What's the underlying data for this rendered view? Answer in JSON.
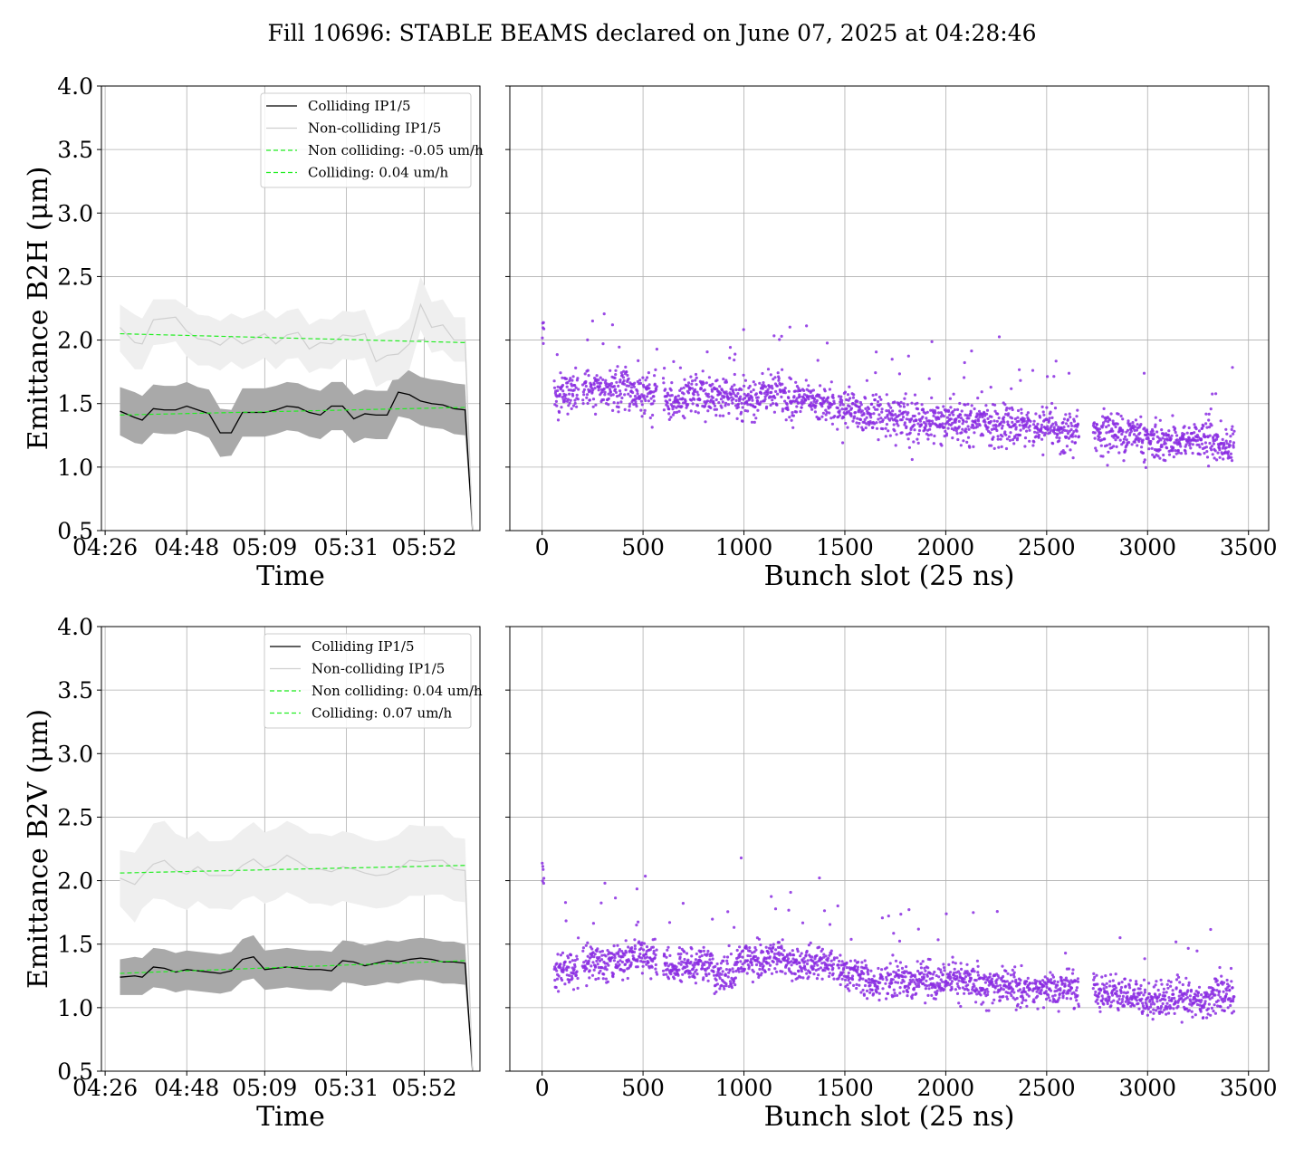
{
  "figure": {
    "title": "Fill 10696: STABLE BEAMS declared on June 07, 2025 at 04:28:46"
  },
  "colors": {
    "colliding_line": "#000000",
    "colliding_band": "#a9a9a9",
    "noncolliding_line": "#cfcfcf",
    "noncolliding_band": "#efefef",
    "fit": "#22ee22",
    "scatter": "#8a2be2",
    "grid": "#b0b0b0"
  },
  "chart_data": [
    {
      "type": "line",
      "panel": "top-left",
      "xlabel": "Time",
      "ylabel": "Emittance B2H (μm)",
      "ylim": [
        0.5,
        4.0
      ],
      "yticks": [
        "0.5",
        "1.0",
        "1.5",
        "2.0",
        "2.5",
        "3.0",
        "3.5",
        "4.0"
      ],
      "xlim": [
        -1,
        101
      ],
      "xticks": [
        {
          "x": 0,
          "label": "04:26"
        },
        {
          "x": 22,
          "label": "04:48"
        },
        {
          "x": 43,
          "label": "05:09"
        },
        {
          "x": 65,
          "label": "05:31"
        },
        {
          "x": 86,
          "label": "05:52"
        }
      ],
      "grid": true,
      "legend_position": "top-right",
      "legend": [
        "Colliding IP1/5",
        "Non-colliding IP1/5",
        "Non colliding: -0.05 um/h",
        "Colliding: 0.04 um/h"
      ],
      "x": [
        4,
        8,
        10,
        13,
        16,
        19,
        22,
        25,
        28,
        31,
        34,
        37,
        40,
        43,
        46,
        49,
        52,
        55,
        58,
        61,
        64,
        67,
        70,
        73,
        76,
        79,
        82,
        85,
        88,
        91,
        94,
        97
      ],
      "series": [
        {
          "name": "Colliding IP1/5",
          "role": "line",
          "values": [
            1.44,
            1.39,
            1.37,
            1.46,
            1.45,
            1.45,
            1.48,
            1.45,
            1.42,
            1.27,
            1.27,
            1.43,
            1.43,
            1.43,
            1.45,
            1.48,
            1.47,
            1.43,
            1.41,
            1.48,
            1.48,
            1.38,
            1.42,
            1.41,
            1.41,
            1.59,
            1.57,
            1.52,
            1.5,
            1.49,
            1.46,
            1.45
          ],
          "lower": [
            1.25,
            1.19,
            1.18,
            1.27,
            1.26,
            1.26,
            1.29,
            1.27,
            1.23,
            1.08,
            1.09,
            1.24,
            1.24,
            1.24,
            1.26,
            1.29,
            1.28,
            1.24,
            1.22,
            1.29,
            1.29,
            1.19,
            1.23,
            1.22,
            1.22,
            1.4,
            1.38,
            1.33,
            1.31,
            1.3,
            1.26,
            1.25
          ],
          "upper": [
            1.63,
            1.59,
            1.56,
            1.65,
            1.64,
            1.64,
            1.67,
            1.63,
            1.61,
            1.46,
            1.45,
            1.62,
            1.62,
            1.62,
            1.64,
            1.67,
            1.66,
            1.62,
            1.6,
            1.67,
            1.67,
            1.57,
            1.61,
            1.6,
            1.6,
            1.78,
            1.76,
            1.71,
            1.69,
            1.68,
            1.66,
            1.65
          ],
          "drop_to": 0.5
        },
        {
          "name": "Non-colliding IP1/5",
          "role": "line",
          "values": [
            2.1,
            1.98,
            1.97,
            2.16,
            2.17,
            2.18,
            2.07,
            2.01,
            2.0,
            1.96,
            2.03,
            1.97,
            2.01,
            2.05,
            1.97,
            2.04,
            2.06,
            1.93,
            1.98,
            1.97,
            2.04,
            2.03,
            2.05,
            1.83,
            1.88,
            1.89,
            1.97,
            2.28,
            2.1,
            2.12,
            2.0,
            2.0
          ],
          "lower": [
            1.91,
            1.77,
            1.77,
            1.96,
            1.97,
            1.99,
            1.87,
            1.8,
            1.8,
            1.76,
            1.83,
            1.77,
            1.81,
            1.86,
            1.77,
            1.85,
            1.86,
            1.74,
            1.78,
            1.77,
            1.85,
            1.84,
            1.86,
            1.63,
            1.68,
            1.69,
            1.77,
            2.08,
            1.9,
            1.92,
            1.83,
            1.83
          ],
          "upper": [
            2.28,
            2.2,
            2.17,
            2.32,
            2.32,
            2.32,
            2.26,
            2.2,
            2.19,
            2.15,
            2.21,
            2.17,
            2.2,
            2.24,
            2.17,
            2.23,
            2.25,
            2.12,
            2.17,
            2.16,
            2.23,
            2.22,
            2.24,
            2.03,
            2.07,
            2.09,
            2.17,
            2.5,
            2.3,
            2.32,
            2.18,
            2.18
          ],
          "drop_to": 0.5
        },
        {
          "name": "Non colliding: -0.05 um/h",
          "role": "fit",
          "x": [
            4,
            97
          ],
          "values": [
            2.05,
            1.98
          ]
        },
        {
          "name": "Colliding: 0.04 um/h",
          "role": "fit",
          "x": [
            4,
            97
          ],
          "values": [
            1.41,
            1.47
          ]
        }
      ]
    },
    {
      "type": "scatter",
      "panel": "top-right",
      "xlabel": "Bunch slot (25 ns)",
      "ylim": [
        0.5,
        4.0
      ],
      "yticks": [
        "0.5",
        "1.0",
        "1.5",
        "2.0",
        "2.5",
        "3.0",
        "3.5",
        "4.0"
      ],
      "xlim": [
        -160,
        3600
      ],
      "xticks": [
        "0",
        "500",
        "1000",
        "1500",
        "2000",
        "2500",
        "3000",
        "3500"
      ],
      "grid": true,
      "trains": [
        {
          "start": 0,
          "end": 10,
          "mean": 2.1
        },
        {
          "start": 60,
          "end": 180,
          "mean": 1.58
        },
        {
          "start": 200,
          "end": 330,
          "mean": 1.6
        },
        {
          "start": 330,
          "end": 440,
          "mean": 1.64
        },
        {
          "start": 440,
          "end": 570,
          "mean": 1.58
        },
        {
          "start": 600,
          "end": 720,
          "mean": 1.52
        },
        {
          "start": 720,
          "end": 850,
          "mean": 1.56
        },
        {
          "start": 850,
          "end": 960,
          "mean": 1.55
        },
        {
          "start": 960,
          "end": 1080,
          "mean": 1.52
        },
        {
          "start": 1080,
          "end": 1200,
          "mean": 1.6
        },
        {
          "start": 1200,
          "end": 1320,
          "mean": 1.52
        },
        {
          "start": 1320,
          "end": 1450,
          "mean": 1.5
        },
        {
          "start": 1460,
          "end": 1580,
          "mean": 1.45
        },
        {
          "start": 1580,
          "end": 1690,
          "mean": 1.4
        },
        {
          "start": 1700,
          "end": 1830,
          "mean": 1.38
        },
        {
          "start": 1830,
          "end": 1950,
          "mean": 1.36
        },
        {
          "start": 1950,
          "end": 2070,
          "mean": 1.36
        },
        {
          "start": 2070,
          "end": 2190,
          "mean": 1.36
        },
        {
          "start": 2190,
          "end": 2310,
          "mean": 1.34
        },
        {
          "start": 2310,
          "end": 2420,
          "mean": 1.31
        },
        {
          "start": 2430,
          "end": 2550,
          "mean": 1.3
        },
        {
          "start": 2550,
          "end": 2660,
          "mean": 1.28
        },
        {
          "start": 2730,
          "end": 2850,
          "mean": 1.28
        },
        {
          "start": 2850,
          "end": 2970,
          "mean": 1.26
        },
        {
          "start": 2970,
          "end": 3090,
          "mean": 1.2
        },
        {
          "start": 3090,
          "end": 3200,
          "mean": 1.2
        },
        {
          "start": 3200,
          "end": 3320,
          "mean": 1.22
        },
        {
          "start": 3320,
          "end": 3430,
          "mean": 1.18
        }
      ],
      "spread": 0.08
    },
    {
      "type": "line",
      "panel": "bottom-left",
      "xlabel": "Time",
      "ylabel": "Emittance B2V (μm)",
      "ylim": [
        0.5,
        4.0
      ],
      "yticks": [
        "0.5",
        "1.0",
        "1.5",
        "2.0",
        "2.5",
        "3.0",
        "3.5",
        "4.0"
      ],
      "xlim": [
        -1,
        101
      ],
      "xticks": [
        {
          "x": 0,
          "label": "04:26"
        },
        {
          "x": 22,
          "label": "04:48"
        },
        {
          "x": 43,
          "label": "05:09"
        },
        {
          "x": 65,
          "label": "05:31"
        },
        {
          "x": 86,
          "label": "05:52"
        }
      ],
      "grid": true,
      "legend_position": "top-right",
      "legend": [
        "Colliding IP1/5",
        "Non-colliding IP1/5",
        "Non colliding: 0.04 um/h",
        "Colliding: 0.07 um/h"
      ],
      "x": [
        4,
        8,
        10,
        13,
        16,
        19,
        22,
        25,
        28,
        31,
        34,
        37,
        40,
        43,
        46,
        49,
        52,
        55,
        58,
        61,
        64,
        67,
        70,
        73,
        76,
        79,
        82,
        85,
        88,
        91,
        94,
        97
      ],
      "series": [
        {
          "name": "Colliding IP1/5",
          "role": "line",
          "values": [
            1.24,
            1.25,
            1.24,
            1.32,
            1.31,
            1.28,
            1.3,
            1.29,
            1.28,
            1.27,
            1.29,
            1.38,
            1.4,
            1.3,
            1.31,
            1.32,
            1.31,
            1.3,
            1.3,
            1.29,
            1.37,
            1.36,
            1.33,
            1.35,
            1.37,
            1.36,
            1.38,
            1.39,
            1.38,
            1.36,
            1.36,
            1.35
          ],
          "lower": [
            1.1,
            1.1,
            1.1,
            1.16,
            1.15,
            1.12,
            1.14,
            1.13,
            1.12,
            1.11,
            1.13,
            1.21,
            1.23,
            1.14,
            1.15,
            1.16,
            1.15,
            1.14,
            1.14,
            1.13,
            1.2,
            1.19,
            1.17,
            1.18,
            1.2,
            1.19,
            1.21,
            1.22,
            1.21,
            1.19,
            1.19,
            1.18
          ],
          "upper": [
            1.38,
            1.4,
            1.39,
            1.47,
            1.46,
            1.43,
            1.45,
            1.44,
            1.43,
            1.42,
            1.44,
            1.54,
            1.57,
            1.45,
            1.46,
            1.47,
            1.46,
            1.45,
            1.45,
            1.44,
            1.53,
            1.52,
            1.49,
            1.51,
            1.53,
            1.52,
            1.54,
            1.55,
            1.54,
            1.52,
            1.52,
            1.5
          ],
          "drop_to": 0.5
        },
        {
          "name": "Non-colliding IP1/5",
          "role": "line",
          "values": [
            2.02,
            1.97,
            2.04,
            2.13,
            2.16,
            2.08,
            2.05,
            2.11,
            2.04,
            2.04,
            2.04,
            2.12,
            2.17,
            2.1,
            2.13,
            2.2,
            2.15,
            2.09,
            2.09,
            2.07,
            2.11,
            2.09,
            2.06,
            2.04,
            2.05,
            2.09,
            2.16,
            2.15,
            2.16,
            2.16,
            2.09,
            2.08
          ],
          "lower": [
            1.8,
            1.67,
            1.78,
            1.86,
            1.85,
            1.8,
            1.77,
            1.84,
            1.78,
            1.78,
            1.77,
            1.85,
            1.88,
            1.82,
            1.85,
            1.91,
            1.87,
            1.82,
            1.82,
            1.8,
            1.84,
            1.82,
            1.8,
            1.78,
            1.79,
            1.82,
            1.88,
            1.88,
            1.89,
            1.89,
            1.84,
            1.83
          ],
          "upper": [
            2.24,
            2.22,
            2.3,
            2.45,
            2.47,
            2.37,
            2.33,
            2.39,
            2.31,
            2.31,
            2.32,
            2.4,
            2.46,
            2.38,
            2.41,
            2.47,
            2.43,
            2.37,
            2.37,
            2.35,
            2.39,
            2.37,
            2.33,
            2.31,
            2.32,
            2.36,
            2.44,
            2.43,
            2.43,
            2.43,
            2.34,
            2.33
          ],
          "drop_to": 0.5
        },
        {
          "name": "Non colliding: 0.04 um/h",
          "role": "fit",
          "x": [
            4,
            97
          ],
          "values": [
            2.06,
            2.12
          ]
        },
        {
          "name": "Colliding: 0.07 um/h",
          "role": "fit",
          "x": [
            4,
            97
          ],
          "values": [
            1.27,
            1.37
          ]
        }
      ]
    },
    {
      "type": "scatter",
      "panel": "bottom-right",
      "xlabel": "Bunch slot (25 ns)",
      "ylim": [
        0.5,
        4.0
      ],
      "yticks": [
        "0.5",
        "1.0",
        "1.5",
        "2.0",
        "2.5",
        "3.0",
        "3.5",
        "4.0"
      ],
      "xlim": [
        -160,
        3600
      ],
      "xticks": [
        "0",
        "500",
        "1000",
        "1500",
        "2000",
        "2500",
        "3000",
        "3500"
      ],
      "grid": true,
      "trains": [
        {
          "start": 0,
          "end": 10,
          "mean": 2.05
        },
        {
          "start": 60,
          "end": 180,
          "mean": 1.3
        },
        {
          "start": 200,
          "end": 330,
          "mean": 1.35
        },
        {
          "start": 330,
          "end": 440,
          "mean": 1.38
        },
        {
          "start": 440,
          "end": 570,
          "mean": 1.4
        },
        {
          "start": 600,
          "end": 720,
          "mean": 1.32
        },
        {
          "start": 720,
          "end": 850,
          "mean": 1.35
        },
        {
          "start": 850,
          "end": 960,
          "mean": 1.25
        },
        {
          "start": 960,
          "end": 1080,
          "mean": 1.37
        },
        {
          "start": 1080,
          "end": 1200,
          "mean": 1.38
        },
        {
          "start": 1200,
          "end": 1320,
          "mean": 1.34
        },
        {
          "start": 1320,
          "end": 1450,
          "mean": 1.35
        },
        {
          "start": 1460,
          "end": 1580,
          "mean": 1.28
        },
        {
          "start": 1580,
          "end": 1690,
          "mean": 1.22
        },
        {
          "start": 1700,
          "end": 1830,
          "mean": 1.19
        },
        {
          "start": 1830,
          "end": 1950,
          "mean": 1.2
        },
        {
          "start": 1950,
          "end": 2070,
          "mean": 1.2
        },
        {
          "start": 2070,
          "end": 2190,
          "mean": 1.2
        },
        {
          "start": 2190,
          "end": 2310,
          "mean": 1.17
        },
        {
          "start": 2310,
          "end": 2420,
          "mean": 1.16
        },
        {
          "start": 2430,
          "end": 2550,
          "mean": 1.15
        },
        {
          "start": 2550,
          "end": 2660,
          "mean": 1.15
        },
        {
          "start": 2730,
          "end": 2850,
          "mean": 1.13
        },
        {
          "start": 2850,
          "end": 2970,
          "mean": 1.09
        },
        {
          "start": 2970,
          "end": 3090,
          "mean": 1.06
        },
        {
          "start": 3090,
          "end": 3200,
          "mean": 1.07
        },
        {
          "start": 3200,
          "end": 3320,
          "mean": 1.06
        },
        {
          "start": 3320,
          "end": 3430,
          "mean": 1.1
        }
      ],
      "spread": 0.07
    }
  ]
}
